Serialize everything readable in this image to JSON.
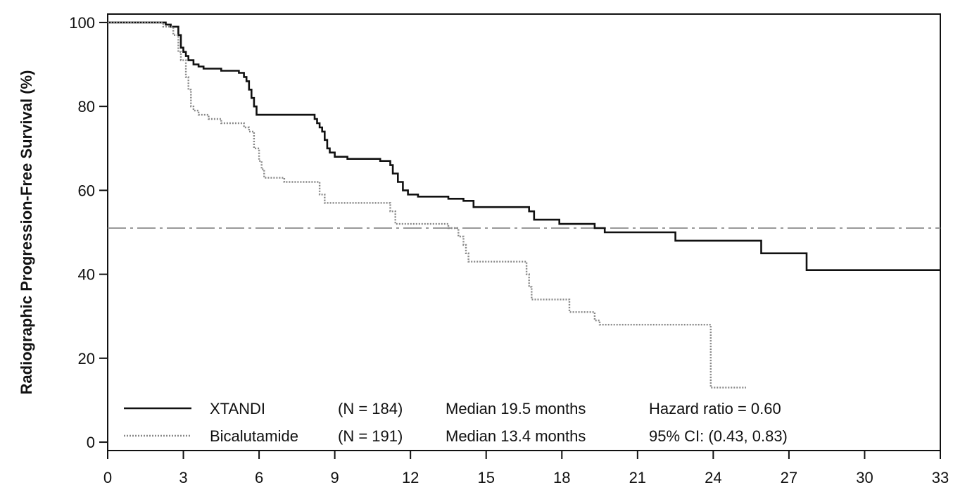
{
  "chart_data": {
    "type": "line",
    "title": "",
    "xlabel": "",
    "ylabel": "Radiographic Progression-Free Survival (%)",
    "xlim": [
      0,
      33
    ],
    "ylim": [
      -2,
      102
    ],
    "xticks": [
      "0",
      "3",
      "6",
      "9",
      "12",
      "15",
      "18",
      "21",
      "24",
      "27",
      "30",
      "33"
    ],
    "yticks": [
      "0",
      "20",
      "40",
      "60",
      "80",
      "100"
    ],
    "grid": false,
    "legend_position": "bottom-left",
    "series": [
      {
        "name": "XTANDI",
        "n": "(N = 184)",
        "median": "Median 19.5 months",
        "stat": "Hazard ratio = 0.60",
        "color": "#111111",
        "style": "solid",
        "points": [
          [
            0,
            100
          ],
          [
            2.3,
            100
          ],
          [
            2.3,
            99.5
          ],
          [
            2.5,
            99.5
          ],
          [
            2.5,
            99
          ],
          [
            2.8,
            99
          ],
          [
            2.8,
            97
          ],
          [
            2.9,
            97
          ],
          [
            2.9,
            94
          ],
          [
            3.0,
            94
          ],
          [
            3.0,
            93
          ],
          [
            3.1,
            93
          ],
          [
            3.1,
            92
          ],
          [
            3.2,
            92
          ],
          [
            3.2,
            91
          ],
          [
            3.4,
            91
          ],
          [
            3.4,
            90
          ],
          [
            3.6,
            90
          ],
          [
            3.6,
            89.5
          ],
          [
            3.8,
            89.5
          ],
          [
            3.8,
            89
          ],
          [
            4.5,
            89
          ],
          [
            4.5,
            88.5
          ],
          [
            5.2,
            88.5
          ],
          [
            5.2,
            88
          ],
          [
            5.4,
            88
          ],
          [
            5.4,
            87
          ],
          [
            5.5,
            87
          ],
          [
            5.5,
            86
          ],
          [
            5.6,
            86
          ],
          [
            5.6,
            84
          ],
          [
            5.7,
            84
          ],
          [
            5.7,
            82
          ],
          [
            5.8,
            82
          ],
          [
            5.8,
            80
          ],
          [
            5.9,
            80
          ],
          [
            5.9,
            78
          ],
          [
            8.2,
            78
          ],
          [
            8.2,
            77
          ],
          [
            8.3,
            77
          ],
          [
            8.3,
            76
          ],
          [
            8.4,
            76
          ],
          [
            8.4,
            75
          ],
          [
            8.5,
            75
          ],
          [
            8.5,
            74
          ],
          [
            8.6,
            74
          ],
          [
            8.6,
            72
          ],
          [
            8.7,
            72
          ],
          [
            8.7,
            70
          ],
          [
            8.8,
            70
          ],
          [
            8.8,
            69
          ],
          [
            9.0,
            69
          ],
          [
            9.0,
            68
          ],
          [
            9.5,
            68
          ],
          [
            9.5,
            67.5
          ],
          [
            10.8,
            67.5
          ],
          [
            10.8,
            67
          ],
          [
            11.2,
            67
          ],
          [
            11.2,
            66
          ],
          [
            11.3,
            66
          ],
          [
            11.3,
            64
          ],
          [
            11.5,
            64
          ],
          [
            11.5,
            62
          ],
          [
            11.7,
            62
          ],
          [
            11.7,
            60
          ],
          [
            11.9,
            60
          ],
          [
            11.9,
            59
          ],
          [
            12.3,
            59
          ],
          [
            12.3,
            58.5
          ],
          [
            13.5,
            58.5
          ],
          [
            13.5,
            58
          ],
          [
            14.1,
            58
          ],
          [
            14.1,
            57.5
          ],
          [
            14.5,
            57.5
          ],
          [
            14.5,
            56
          ],
          [
            16.7,
            56
          ],
          [
            16.7,
            55
          ],
          [
            16.9,
            55
          ],
          [
            16.9,
            53
          ],
          [
            17.9,
            53
          ],
          [
            17.9,
            52
          ],
          [
            19.3,
            52
          ],
          [
            19.3,
            51
          ],
          [
            19.7,
            51
          ],
          [
            19.7,
            50
          ],
          [
            22.5,
            50
          ],
          [
            22.5,
            48
          ],
          [
            25.9,
            48
          ],
          [
            25.9,
            45
          ],
          [
            27.7,
            45
          ],
          [
            27.7,
            41
          ],
          [
            33,
            41
          ]
        ]
      },
      {
        "name": "Bicalutamide",
        "n": "(N = 191)",
        "median": "Median 13.4 months",
        "stat": "95% CI: (0.43, 0.83)",
        "color": "#888888",
        "style": "dotted",
        "points": [
          [
            0,
            100
          ],
          [
            2.2,
            100
          ],
          [
            2.2,
            99
          ],
          [
            2.6,
            99
          ],
          [
            2.6,
            97
          ],
          [
            2.8,
            97
          ],
          [
            2.8,
            93
          ],
          [
            2.9,
            93
          ],
          [
            2.9,
            91
          ],
          [
            3.1,
            91
          ],
          [
            3.1,
            87
          ],
          [
            3.2,
            87
          ],
          [
            3.2,
            84
          ],
          [
            3.3,
            84
          ],
          [
            3.3,
            80
          ],
          [
            3.4,
            80
          ],
          [
            3.4,
            79
          ],
          [
            3.6,
            79
          ],
          [
            3.6,
            78
          ],
          [
            4.0,
            78
          ],
          [
            4.0,
            77
          ],
          [
            4.5,
            77
          ],
          [
            4.5,
            76
          ],
          [
            5.4,
            76
          ],
          [
            5.4,
            75
          ],
          [
            5.6,
            75
          ],
          [
            5.6,
            74
          ],
          [
            5.8,
            74
          ],
          [
            5.8,
            70
          ],
          [
            6.0,
            70
          ],
          [
            6.0,
            67
          ],
          [
            6.1,
            67
          ],
          [
            6.1,
            65
          ],
          [
            6.2,
            65
          ],
          [
            6.2,
            63
          ],
          [
            7.0,
            63
          ],
          [
            7.0,
            62
          ],
          [
            8.4,
            62
          ],
          [
            8.4,
            59
          ],
          [
            8.6,
            59
          ],
          [
            8.6,
            57
          ],
          [
            11.2,
            57
          ],
          [
            11.2,
            55
          ],
          [
            11.4,
            55
          ],
          [
            11.4,
            52
          ],
          [
            13.5,
            52
          ],
          [
            13.5,
            51
          ],
          [
            13.9,
            51
          ],
          [
            13.9,
            49
          ],
          [
            14.1,
            49
          ],
          [
            14.1,
            47
          ],
          [
            14.2,
            47
          ],
          [
            14.2,
            45
          ],
          [
            14.3,
            45
          ],
          [
            14.3,
            43
          ],
          [
            16.6,
            43
          ],
          [
            16.6,
            40
          ],
          [
            16.7,
            40
          ],
          [
            16.7,
            37
          ],
          [
            16.8,
            37
          ],
          [
            16.8,
            34
          ],
          [
            18.3,
            34
          ],
          [
            18.3,
            31
          ],
          [
            19.3,
            31
          ],
          [
            19.3,
            29
          ],
          [
            19.5,
            29
          ],
          [
            19.5,
            28
          ],
          [
            23.9,
            28
          ],
          [
            23.9,
            13
          ],
          [
            25.3,
            13
          ]
        ]
      }
    ],
    "reference_line": {
      "y": 51,
      "style": "dash-dot",
      "color": "#999999"
    }
  }
}
